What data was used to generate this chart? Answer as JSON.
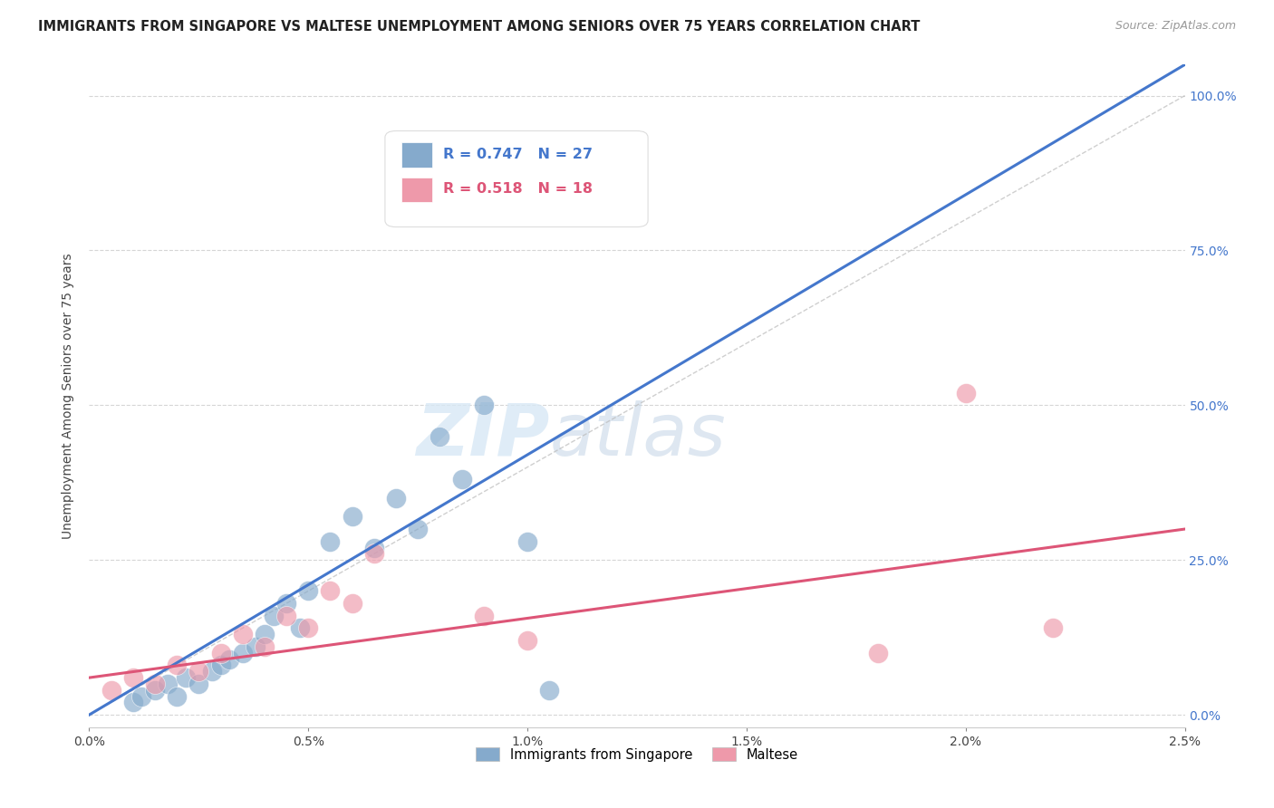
{
  "title": "IMMIGRANTS FROM SINGAPORE VS MALTESE UNEMPLOYMENT AMONG SENIORS OVER 75 YEARS CORRELATION CHART",
  "source": "Source: ZipAtlas.com",
  "ylabel": "Unemployment Among Seniors over 75 years",
  "y_tick_labels_right": [
    "0.0%",
    "25.0%",
    "50.0%",
    "75.0%",
    "100.0%"
  ],
  "legend_blue_r": "R = 0.747",
  "legend_blue_n": "N = 27",
  "legend_pink_r": "R = 0.518",
  "legend_pink_n": "N = 18",
  "legend_blue_label": "Immigrants from Singapore",
  "legend_pink_label": "Maltese",
  "blue_color": "#85AACC",
  "pink_color": "#EE99AA",
  "blue_line_color": "#4477CC",
  "pink_line_color": "#DD5577",
  "watermark_zip": "ZIP",
  "watermark_atlas": "atlas",
  "blue_scatter_x": [
    0.0001,
    0.00012,
    0.00015,
    0.00018,
    0.0002,
    0.00022,
    0.00025,
    0.00028,
    0.0003,
    0.00032,
    0.00035,
    0.00038,
    0.0004,
    0.00042,
    0.00045,
    0.00048,
    0.0005,
    0.00055,
    0.0006,
    0.00065,
    0.0007,
    0.00075,
    0.0008,
    0.00085,
    0.0009,
    0.001,
    0.00105
  ],
  "blue_scatter_y": [
    0.02,
    0.03,
    0.04,
    0.05,
    0.03,
    0.06,
    0.05,
    0.07,
    0.08,
    0.09,
    0.1,
    0.11,
    0.13,
    0.16,
    0.18,
    0.14,
    0.2,
    0.28,
    0.32,
    0.27,
    0.35,
    0.3,
    0.45,
    0.38,
    0.5,
    0.28,
    0.04
  ],
  "pink_scatter_x": [
    5e-05,
    0.0001,
    0.00015,
    0.0002,
    0.00025,
    0.0003,
    0.00035,
    0.0004,
    0.00045,
    0.0005,
    0.00055,
    0.0006,
    0.00065,
    0.0009,
    0.001,
    0.0018,
    0.002,
    0.0022
  ],
  "pink_scatter_y": [
    0.04,
    0.06,
    0.05,
    0.08,
    0.07,
    0.1,
    0.13,
    0.11,
    0.16,
    0.14,
    0.2,
    0.18,
    0.26,
    0.16,
    0.12,
    0.1,
    0.52,
    0.14
  ],
  "blue_trendline_x": [
    0.0,
    0.0025
  ],
  "blue_trendline_y": [
    0.0,
    1.05
  ],
  "pink_trendline_x": [
    0.0,
    0.0025
  ],
  "pink_trendline_y": [
    0.06,
    0.3
  ],
  "diag_line_x": [
    0.0,
    0.0025
  ],
  "diag_line_y": [
    0.0,
    1.0
  ],
  "xlim": [
    0.0,
    0.0025
  ],
  "ylim": [
    -0.02,
    1.05
  ],
  "x_ticks": [
    0.0,
    0.0005,
    0.001,
    0.0015,
    0.002,
    0.0025
  ],
  "x_tick_labels": [
    "0.0%",
    "0.5%",
    "1.0%",
    "1.5%",
    "2.0%",
    "2.5%"
  ],
  "y_ticks": [
    0.0,
    0.25,
    0.5,
    0.75,
    1.0
  ]
}
